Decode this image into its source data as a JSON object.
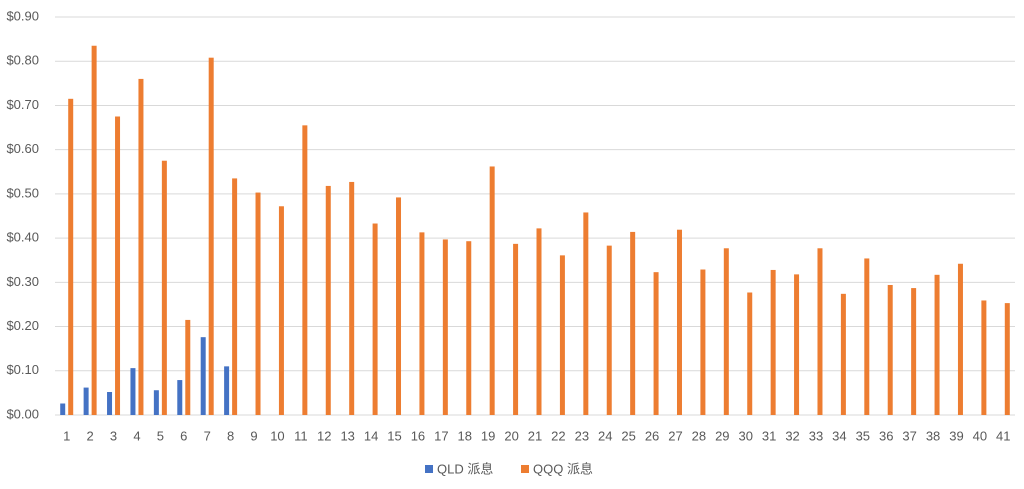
{
  "chart_data": {
    "type": "bar",
    "categories": [
      "1",
      "2",
      "3",
      "4",
      "5",
      "6",
      "7",
      "8",
      "9",
      "10",
      "11",
      "12",
      "13",
      "14",
      "15",
      "16",
      "17",
      "18",
      "19",
      "20",
      "21",
      "22",
      "23",
      "24",
      "25",
      "26",
      "27",
      "28",
      "29",
      "30",
      "31",
      "32",
      "33",
      "34",
      "35",
      "36",
      "37",
      "38",
      "39",
      "40",
      "41"
    ],
    "series": [
      {
        "name": "QLD 派息",
        "color": "#4472c4",
        "values": [
          0.026,
          0.062,
          0.052,
          0.106,
          0.056,
          0.079,
          0.176,
          0.11,
          null,
          null,
          null,
          null,
          null,
          null,
          null,
          null,
          null,
          null,
          null,
          null,
          null,
          null,
          null,
          null,
          null,
          null,
          null,
          null,
          null,
          null,
          null,
          null,
          null,
          null,
          null,
          null,
          null,
          null,
          null,
          null,
          null
        ]
      },
      {
        "name": "QQQ 派息",
        "color": "#ed7d31",
        "values": [
          0.715,
          0.835,
          0.675,
          0.76,
          0.575,
          0.215,
          0.808,
          0.535,
          0.503,
          0.472,
          0.655,
          0.518,
          0.527,
          0.433,
          0.492,
          0.413,
          0.397,
          0.393,
          0.562,
          0.387,
          0.422,
          0.361,
          0.458,
          0.383,
          0.414,
          0.323,
          0.419,
          0.329,
          0.377,
          0.277,
          0.328,
          0.318,
          0.377,
          0.274,
          0.354,
          0.294,
          0.287,
          0.317,
          0.342,
          0.259,
          0.253
        ]
      }
    ],
    "ylim": [
      0,
      0.9
    ],
    "yticks": [
      {
        "value": 0,
        "label": "$0.00"
      },
      {
        "value": 0.1,
        "label": "$0.10"
      },
      {
        "value": 0.2,
        "label": "$0.20"
      },
      {
        "value": 0.3,
        "label": "$0.30"
      },
      {
        "value": 0.4,
        "label": "$0.40"
      },
      {
        "value": 0.5,
        "label": "$0.50"
      },
      {
        "value": 0.6,
        "label": "$0.60"
      },
      {
        "value": 0.7,
        "label": "$0.70"
      },
      {
        "value": 0.8,
        "label": "$0.80"
      },
      {
        "value": 0.9,
        "label": "$0.90"
      }
    ],
    "grid": true,
    "legend": "bottom"
  }
}
